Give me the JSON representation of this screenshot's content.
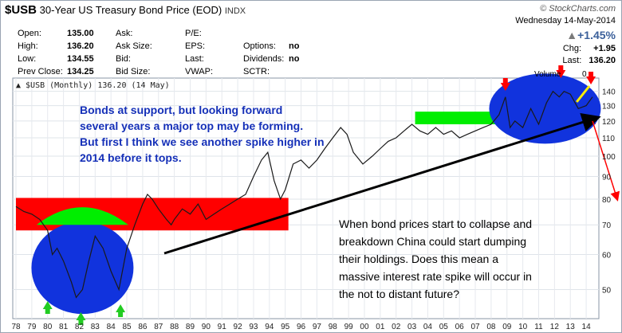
{
  "header": {
    "symbol": "$USB",
    "title": "30-Year US Treasury Bond Price (EOD)",
    "exchange": "INDX",
    "copyright": "© StockCharts.com",
    "date": "Wednesday  14-May-2014",
    "pct_change": "+1.45%",
    "chg_label": "Chg:",
    "chg_value": "+1.95",
    "last_label": "Last:",
    "last_value": "136.20"
  },
  "quote": {
    "open_label": "Open:",
    "open": "135.00",
    "high_label": "High:",
    "high": "136.20",
    "low_label": "Low:",
    "low": "134.55",
    "prev_label": "Prev Close:",
    "prev": "134.25",
    "ask_label": "Ask:",
    "asksize_label": "Ask Size:",
    "bid_label": "Bid:",
    "bidsize_label": "Bid Size:",
    "pe_label": "P/E:",
    "eps_label": "EPS:",
    "lastq_label": "Last:",
    "vwap_label": "VWAP:",
    "options_label": "Options:",
    "options": "no",
    "dividends_label": "Dividends:",
    "dividends": "no",
    "sctr_label": "SCTR:"
  },
  "legend": "▲ $USB (Monthly) 136.20 (14 May)",
  "volume_label": "Volume",
  "volume_value": "0",
  "annotations": {
    "top_text": [
      "Bonds at support, but looking forward",
      "several years a major top may be forming.",
      "But first I think we see another spike higher in",
      "2014 before it tops."
    ],
    "bottom_text": [
      "When bond prices start to collapse and",
      "breakdown China could start dumping",
      "their holdings. Does this mean a",
      "massive interest rate spike will occur in",
      "the not to distant future?"
    ]
  },
  "colors": {
    "price": "#1a1a1a",
    "red_band": "#ff0000",
    "green_band": "#00ee00",
    "circle": "#1133dd",
    "text": "#1530b8",
    "arrow_green": "#22cc22",
    "arrow_red": "#ff0000",
    "arrow_yellow": "#ffee00"
  },
  "chart_data": {
    "type": "line",
    "title": "30-Year US Treasury Bond Price (EOD)",
    "xlabel": "",
    "ylabel": "",
    "x_ticks": [
      "78",
      "79",
      "80",
      "81",
      "82",
      "83",
      "84",
      "85",
      "86",
      "87",
      "88",
      "89",
      "90",
      "91",
      "92",
      "93",
      "94",
      "95",
      "96",
      "97",
      "98",
      "99",
      "00",
      "01",
      "02",
      "03",
      "04",
      "05",
      "06",
      "07",
      "08",
      "09",
      "10",
      "11",
      "12",
      "13",
      "14"
    ],
    "y_ticks": [
      50,
      60,
      70,
      80,
      90,
      100,
      110,
      120,
      130,
      140
    ],
    "ylim": [
      43,
      150
    ],
    "log_scale": true,
    "grid": true,
    "series": [
      {
        "x": [
          1978.0,
          1978.5,
          1979.0,
          1979.5,
          1980.0,
          1980.3,
          1980.6,
          1981.0,
          1981.5,
          1981.8,
          1982.2,
          1982.6,
          1983.0,
          1983.5,
          1984.0,
          1984.5,
          1985.0,
          1985.5,
          1986.0,
          1986.3,
          1986.6,
          1987.0,
          1987.5,
          1987.8,
          1988.0,
          1988.5,
          1989.0,
          1989.5,
          1990.0,
          1990.5,
          1991.0,
          1991.5,
          1992.0,
          1992.5,
          1993.0,
          1993.5,
          1993.9,
          1994.3,
          1994.7,
          1995.0,
          1995.5,
          1996.0,
          1996.5,
          1997.0,
          1997.5,
          1998.0,
          1998.5,
          1998.9,
          1999.3,
          1999.9,
          2000.5,
          2001.0,
          2001.5,
          2002.0,
          2002.5,
          2003.0,
          2003.5,
          2004.0,
          2004.5,
          2005.0,
          2005.5,
          2006.0,
          2006.5,
          2007.0,
          2007.5,
          2008.0,
          2008.5,
          2008.9,
          2009.2,
          2009.5,
          2010.0,
          2010.5,
          2011.0,
          2011.5,
          2011.9,
          2012.3,
          2012.6,
          2013.0,
          2013.5,
          2014.0,
          2014.4
        ],
        "y": [
          77,
          75,
          74,
          72,
          68,
          60,
          62,
          58,
          52,
          48,
          50,
          58,
          66,
          62,
          55,
          50,
          62,
          70,
          78,
          82,
          80,
          76,
          72,
          70,
          72,
          76,
          74,
          78,
          72,
          74,
          76,
          78,
          80,
          82,
          90,
          98,
          102,
          88,
          80,
          84,
          96,
          98,
          94,
          98,
          104,
          110,
          116,
          112,
          102,
          96,
          100,
          104,
          108,
          110,
          114,
          118,
          114,
          112,
          116,
          112,
          114,
          110,
          112,
          114,
          116,
          118,
          124,
          136,
          116,
          120,
          116,
          128,
          118,
          132,
          140,
          136,
          140,
          138,
          128,
          130,
          136
        ]
      }
    ]
  }
}
